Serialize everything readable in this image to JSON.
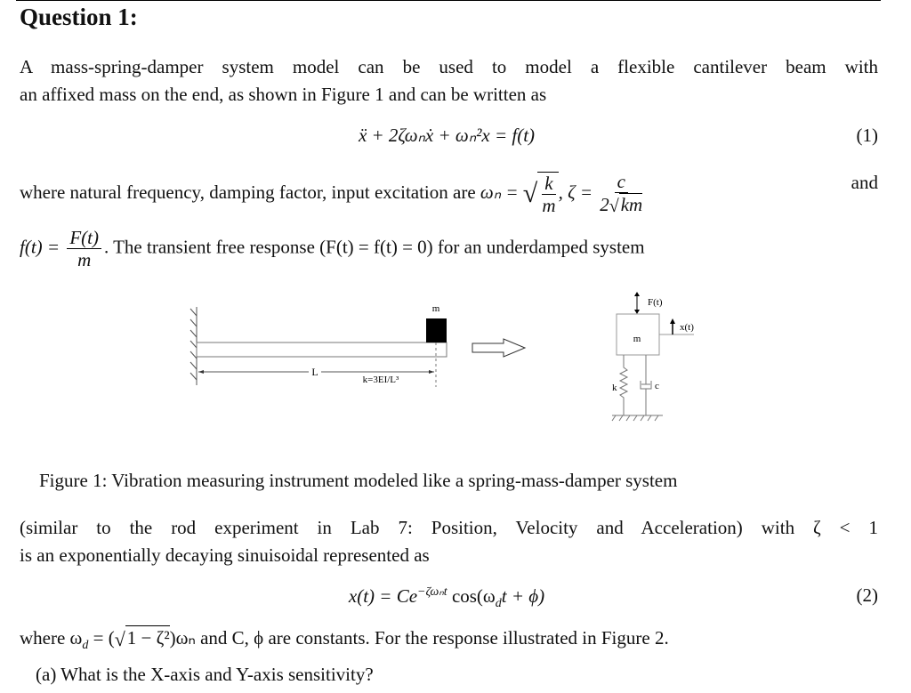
{
  "heading": "Question 1:",
  "para1": {
    "line1": "A mass-spring-damper system model can be used to model a flexible cantilever beam with",
    "line2": "an affixed mass on the end, as shown in Figure 1 and can be written as"
  },
  "eq1": {
    "expr": "ẍ + 2ζωₙẋ + ωₙ²x = f(t)",
    "number": "(1)"
  },
  "para2": {
    "text": "where natural frequency, damping factor, input excitation are",
    "wn": "ωₙ =",
    "k": "k",
    "m": "m",
    "zeta": ", ζ =",
    "c": "c",
    "den": "2",
    "km": "km",
    "and": "and",
    "ft": "f(t) =",
    "Ft": "F(t)",
    "m2": "m",
    "rest": ". The transient free response (F(t) = f(t) = 0) for an underdamped system"
  },
  "figure": {
    "beam_mass_label": "m",
    "length_label": "L",
    "stiffness_label": "k=3EI/L³",
    "force_label": "F(t)",
    "mass_label": "m",
    "displacement_label": "x(t)",
    "spring_label": "k",
    "damper_label": "c",
    "caption": "Figure 1: Vibration measuring instrument modeled like a spring-mass-damper system"
  },
  "para3": {
    "line1": "(similar to the rod experiment in Lab 7: Position, Velocity and Acceleration) with ζ < 1",
    "line2": "is an exponentially decaying sinuisoidal represented as"
  },
  "eq2": {
    "lhs": "x(t) = Ce",
    "exp": "−ζωₙt",
    "rhs": " cos(ω",
    "sub": "d",
    "tail": "t + ϕ)",
    "number": "(2)"
  },
  "para4": {
    "pre": "where ω",
    "sub": "d",
    "mid": " = (",
    "sqrt": "1 − ζ²",
    "post": ")ωₙ and C, ϕ are constants. For the response illustrated in Figure 2."
  },
  "question_a": "(a)  What is the X-axis and Y-axis sensitivity?"
}
